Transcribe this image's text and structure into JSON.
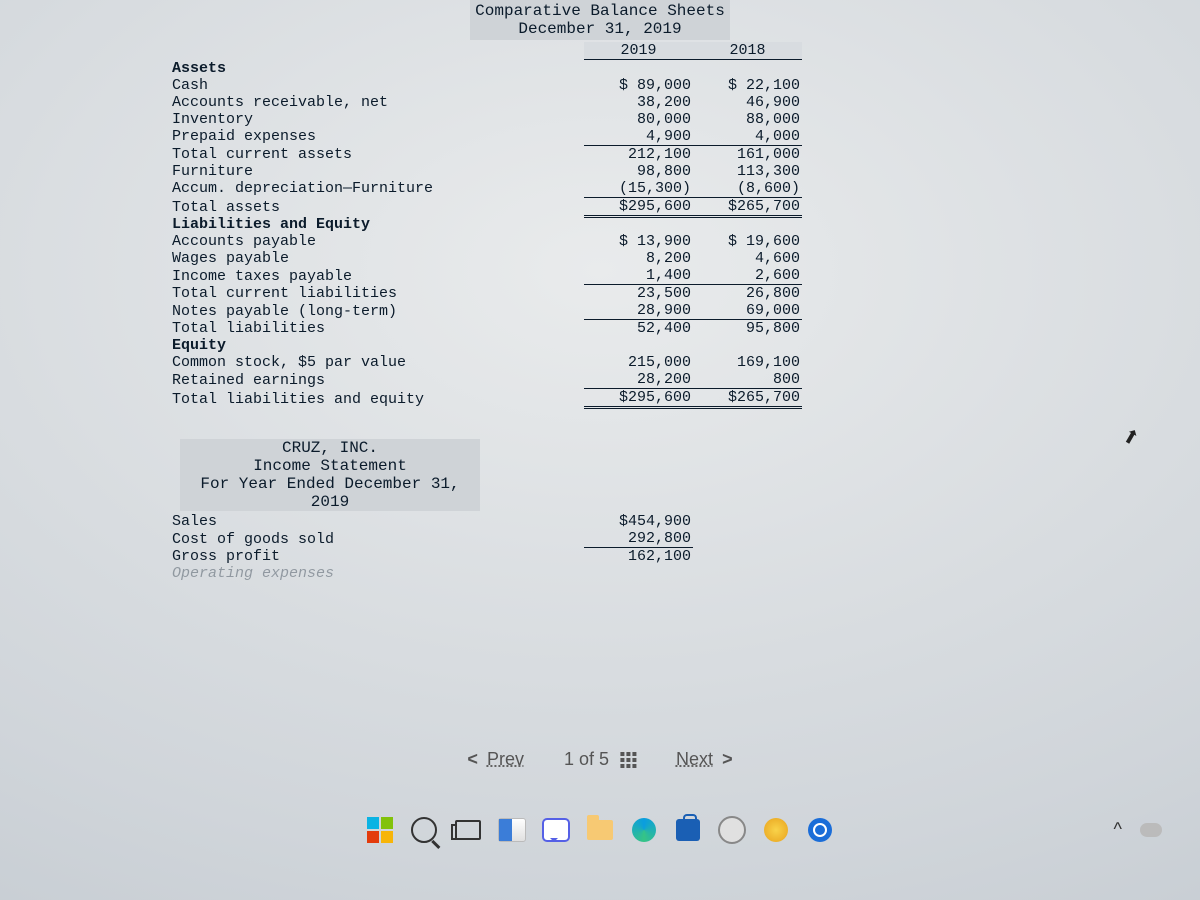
{
  "balance_sheet": {
    "title_lines": [
      "Comparative Balance Sheets",
      "December 31, 2019"
    ],
    "col_headers": [
      "2019",
      "2018"
    ],
    "sections": {
      "assets_header": "Assets",
      "liab_header": "Liabilities and Equity",
      "equity_header": "Equity"
    },
    "rows": [
      {
        "label": "Cash",
        "v2019": "$ 89,000",
        "v2018": "$ 22,100"
      },
      {
        "label": "Accounts receivable, net",
        "v2019": "38,200",
        "v2018": "46,900"
      },
      {
        "label": "Inventory",
        "v2019": "80,000",
        "v2018": "88,000"
      },
      {
        "label": "Prepaid expenses",
        "v2019": "4,900",
        "v2018": "4,000",
        "uline": true
      },
      {
        "label": "Total current assets",
        "v2019": "212,100",
        "v2018": "161,000"
      },
      {
        "label": "Furniture",
        "v2019": "98,800",
        "v2018": "113,300"
      },
      {
        "label": "Accum. depreciation—Furniture",
        "v2019": "(15,300)",
        "v2018": "(8,600)",
        "uline": true
      },
      {
        "label": "Total assets",
        "v2019": "$295,600",
        "v2018": "$265,700",
        "dline": true
      }
    ],
    "liab_rows": [
      {
        "label": "Accounts payable",
        "v2019": "$ 13,900",
        "v2018": "$ 19,600"
      },
      {
        "label": "Wages payable",
        "v2019": "8,200",
        "v2018": "4,600"
      },
      {
        "label": "Income taxes payable",
        "v2019": "1,400",
        "v2018": "2,600",
        "uline": true
      },
      {
        "label": "Total current liabilities",
        "v2019": "23,500",
        "v2018": "26,800"
      },
      {
        "label": "Notes payable (long-term)",
        "v2019": "28,900",
        "v2018": "69,000",
        "uline": true
      },
      {
        "label": "Total liabilities",
        "v2019": "52,400",
        "v2018": "95,800"
      }
    ],
    "equity_rows": [
      {
        "label": "Common stock, $5 par value",
        "v2019": "215,000",
        "v2018": "169,100"
      },
      {
        "label": "Retained earnings",
        "v2019": "28,200",
        "v2018": "800",
        "uline": true
      },
      {
        "label": "Total liabilities and equity",
        "v2019": "$295,600",
        "v2018": "$265,700",
        "dline": true
      }
    ]
  },
  "income_statement": {
    "title_lines": [
      "CRUZ, INC.",
      "Income Statement",
      "For Year Ended December 31, 2019"
    ],
    "rows": [
      {
        "label": "Sales",
        "val": "$454,900"
      },
      {
        "label": "Cost of goods sold",
        "val": "292,800",
        "uline": true
      },
      {
        "label": "Gross profit",
        "val": "162,100"
      },
      {
        "label": "Operating expenses",
        "val": ""
      }
    ]
  },
  "pager": {
    "prev": "Prev",
    "next": "Next",
    "pos": "1 of 5"
  },
  "tray": {
    "up": "^"
  },
  "colors": {
    "text": "#0b1b2b",
    "shade": "#cfd3d7",
    "bg": "#d8dce0",
    "link": "#555555"
  }
}
